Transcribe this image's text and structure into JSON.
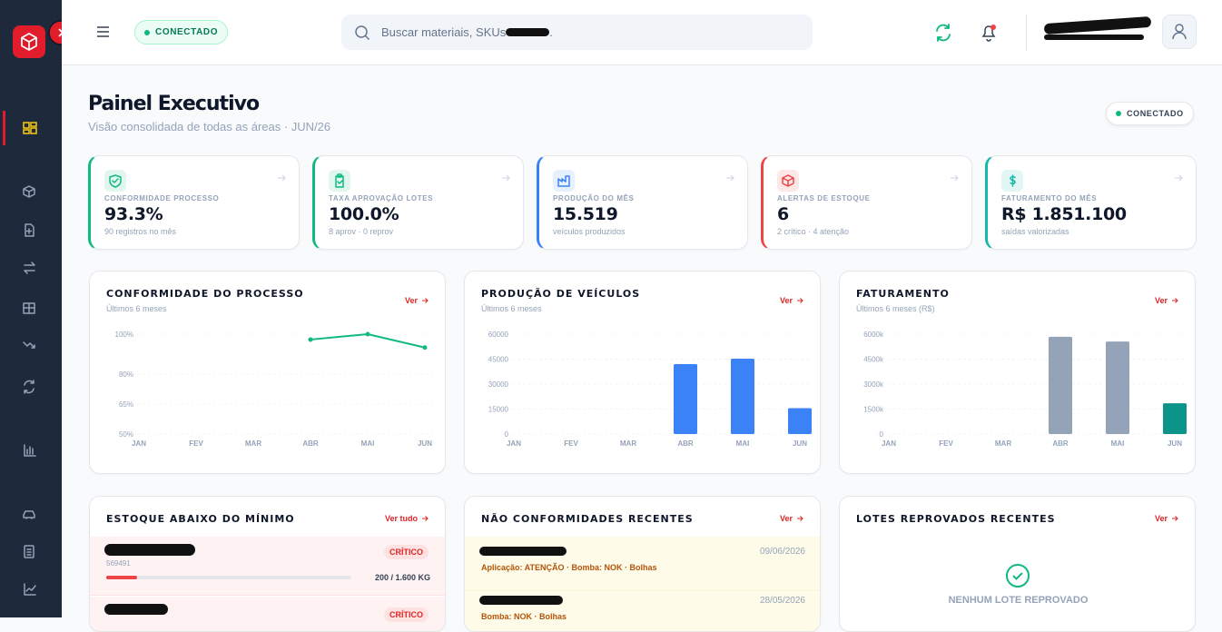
{
  "topbar": {
    "status": "CONECTADO",
    "search_placeholder": "Buscar materiais, SKUs",
    "search_suffix": "."
  },
  "header": {
    "title": "Painel Executivo",
    "subtitle": "Visão consolidada de todas as áreas · JUN/26",
    "status": "CONECTADO"
  },
  "kpis": [
    {
      "label": "CONFORMIDADE PROCESSO",
      "value": "93.3%",
      "note": "90 registros no mês",
      "color": "#10b981"
    },
    {
      "label": "TAXA APROVAÇÃO LOTES",
      "value": "100.0%",
      "note": "8 aprov · 0 reprov",
      "color": "#10b981"
    },
    {
      "label": "PRODUÇÃO DO MÊS",
      "value": "15.519",
      "note": "veículos produzidos",
      "color": "#3b82f6"
    },
    {
      "label": "ALERTAS DE ESTOQUE",
      "value": "6",
      "note": "2 crítico · 4 atenção",
      "color": "#ef4444"
    },
    {
      "label": "FATURAMENTO DO MÊS",
      "value": "R$ 1.851.100",
      "note": "saídas valorizadas",
      "color": "#14b8a6"
    }
  ],
  "charts": [
    {
      "type": "line",
      "title": "CONFORMIDADE DO PROCESSO",
      "subtitle": "Últimos 6 meses",
      "link": "Ver",
      "categories": [
        "JAN",
        "FEV",
        "MAR",
        "ABR",
        "MAI",
        "JUN"
      ],
      "values": [
        null,
        null,
        null,
        97.3,
        100,
        93.3
      ],
      "color": "#10b981",
      "ylim": [
        50,
        100
      ],
      "yticks": [
        {
          "value": 50,
          "label": "50%"
        },
        {
          "value": 65,
          "label": "65%"
        },
        {
          "value": 80,
          "label": "80%"
        },
        {
          "value": 100,
          "label": "100%"
        }
      ]
    },
    {
      "type": "bar",
      "title": "PRODUÇÃO DE VEÍCULOS",
      "subtitle": "Últimos 6 meses",
      "link": "Ver",
      "categories": [
        "JAN",
        "FEV",
        "MAR",
        "ABR",
        "MAI",
        "JUN"
      ],
      "values": [
        0,
        0,
        0,
        42000,
        45300,
        15519
      ],
      "colors": [
        "#3b82f6",
        "#3b82f6",
        "#3b82f6",
        "#3b82f6",
        "#3b82f6",
        "#3b82f6"
      ],
      "ylim": [
        0,
        60000
      ],
      "yticks": [
        0,
        15000,
        30000,
        45000,
        60000
      ]
    },
    {
      "type": "bar",
      "title": "FATURAMENTO",
      "subtitle": "Últimos 6 meses (R$)",
      "link": "Ver",
      "categories": [
        "JAN",
        "FEV",
        "MAR",
        "ABR",
        "MAI",
        "JUN"
      ],
      "values": [
        0,
        0,
        0,
        5840000,
        5560000,
        1851100
      ],
      "colors": [
        "#94a3b8",
        "#94a3b8",
        "#94a3b8",
        "#94a3b8",
        "#94a3b8",
        "#0d9488"
      ],
      "ylim": [
        0,
        6000000
      ],
      "yticks": [
        0,
        {
          "value": 1500000,
          "label": "1500k"
        },
        {
          "value": 3000000,
          "label": "3000k"
        },
        {
          "value": 4500000,
          "label": "4500k"
        },
        {
          "value": 6000000,
          "label": "6000k"
        }
      ]
    }
  ],
  "panels": {
    "stock": {
      "title": "ESTOQUE ABAIXO DO MÍNIMO",
      "link": "Ver tudo",
      "items": [
        {
          "code": "569491",
          "badge": "CRÍTICO",
          "stock_label": "200 / 1.600 KG",
          "stock": 200,
          "minimum": 1600
        },
        {
          "badge": "CRÍTICO"
        }
      ]
    },
    "nonconformities": {
      "title": "NÃO CONFORMIDADES RECENTES",
      "link": "Ver",
      "items": [
        {
          "date": "09/06/2026",
          "detail": "Aplicação: ATENÇÃO · Bomba: NOK · Bolhas"
        },
        {
          "date": "28/05/2026",
          "detail": "Bomba: NOK · Bolhas"
        }
      ]
    },
    "rejected_lots": {
      "title": "LOTES REPROVADOS RECENTES",
      "link": "Ver",
      "empty": "NENHUM LOTE REPROVADO"
    }
  }
}
